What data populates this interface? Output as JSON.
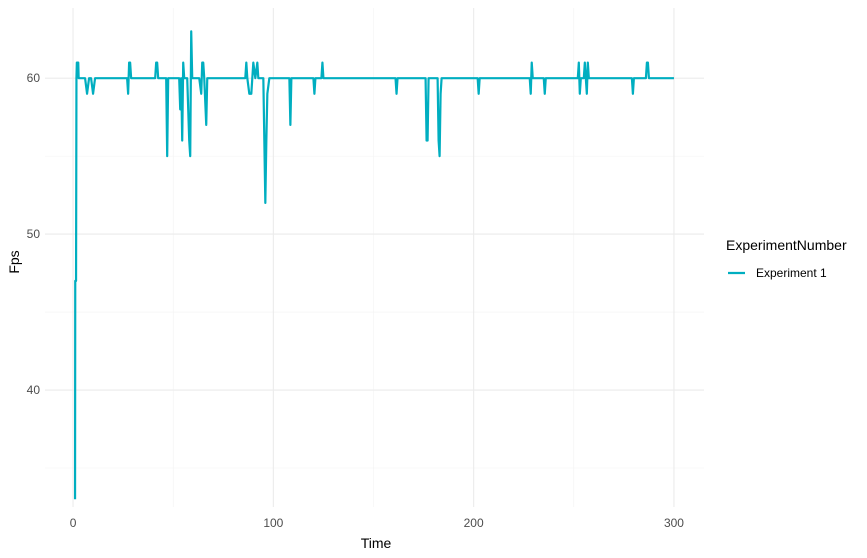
{
  "chart_data": {
    "type": "line",
    "xlabel": "Time",
    "ylabel": "Fps",
    "xlim": [
      -14,
      315
    ],
    "ylim": [
      32.5,
      64.5
    ],
    "x_ticks": [
      0,
      100,
      200,
      300
    ],
    "x_tick_labels": [
      "0",
      "100",
      "200",
      "300"
    ],
    "x_minor_ticks": [
      50,
      150,
      250
    ],
    "y_ticks": [
      40,
      50,
      60
    ],
    "y_tick_labels": [
      "40",
      "50",
      "60"
    ],
    "y_minor_ticks": [
      35,
      45,
      55
    ],
    "grid": true,
    "legend": {
      "title": "ExperimentNumber",
      "position": "right"
    },
    "series": [
      {
        "name": "Experiment 1",
        "color": "#00aec0",
        "points": [
          [
            1,
            33
          ],
          [
            1.1,
            47
          ],
          [
            1.5,
            47
          ],
          [
            1.7,
            60
          ],
          [
            1.9,
            61
          ],
          [
            2.6,
            61
          ],
          [
            2.8,
            60
          ],
          [
            6,
            60
          ],
          [
            7,
            59
          ],
          [
            8,
            60
          ],
          [
            9,
            60
          ],
          [
            10,
            59
          ],
          [
            11,
            60
          ],
          [
            27,
            60
          ],
          [
            27.5,
            59
          ],
          [
            28,
            61
          ],
          [
            28.5,
            61
          ],
          [
            29,
            60
          ],
          [
            41,
            60
          ],
          [
            41.5,
            61
          ],
          [
            42,
            61
          ],
          [
            42.5,
            60
          ],
          [
            46.5,
            60
          ],
          [
            47,
            55
          ],
          [
            47.5,
            60
          ],
          [
            50,
            60
          ],
          [
            53,
            60
          ],
          [
            53.5,
            58
          ],
          [
            54,
            60
          ],
          [
            54.5,
            56
          ],
          [
            55,
            61
          ],
          [
            55.5,
            60
          ],
          [
            57,
            60
          ],
          [
            58,
            56
          ],
          [
            58.5,
            55
          ],
          [
            59,
            63
          ],
          [
            59.5,
            60
          ],
          [
            62,
            60
          ],
          [
            63,
            60
          ],
          [
            64,
            59
          ],
          [
            64.5,
            61
          ],
          [
            65,
            61
          ],
          [
            65.5,
            60
          ],
          [
            66.5,
            57
          ],
          [
            67,
            60
          ],
          [
            86,
            60
          ],
          [
            86.5,
            61
          ],
          [
            87,
            60
          ],
          [
            88,
            59
          ],
          [
            89,
            59
          ],
          [
            90,
            61
          ],
          [
            91,
            60
          ],
          [
            92,
            61
          ],
          [
            92.5,
            60
          ],
          [
            95,
            60
          ],
          [
            95.5,
            56
          ],
          [
            96,
            52
          ],
          [
            96.5,
            56
          ],
          [
            97,
            59
          ],
          [
            98,
            60
          ],
          [
            108,
            60
          ],
          [
            108.5,
            57
          ],
          [
            109,
            60
          ],
          [
            120,
            60
          ],
          [
            120.5,
            59
          ],
          [
            121,
            60
          ],
          [
            124,
            60
          ],
          [
            124.5,
            61
          ],
          [
            125,
            60
          ],
          [
            161,
            60
          ],
          [
            161.5,
            59
          ],
          [
            162,
            60
          ],
          [
            176,
            60
          ],
          [
            176.5,
            56
          ],
          [
            177,
            56
          ],
          [
            177.5,
            60
          ],
          [
            179,
            60
          ],
          [
            182,
            60
          ],
          [
            182.5,
            56
          ],
          [
            183,
            55
          ],
          [
            183.5,
            59
          ],
          [
            184,
            60
          ],
          [
            202,
            60
          ],
          [
            202.5,
            59
          ],
          [
            203,
            60
          ],
          [
            228,
            60
          ],
          [
            228.5,
            59
          ],
          [
            229,
            61
          ],
          [
            229.5,
            60
          ],
          [
            235,
            60
          ],
          [
            235.5,
            59
          ],
          [
            236,
            60
          ],
          [
            252,
            60
          ],
          [
            252.5,
            61
          ],
          [
            253,
            59
          ],
          [
            253.5,
            60
          ],
          [
            255,
            60
          ],
          [
            255.5,
            61
          ],
          [
            256,
            60
          ],
          [
            256.5,
            59
          ],
          [
            257,
            61
          ],
          [
            257.5,
            60
          ],
          [
            279,
            60
          ],
          [
            279.5,
            59
          ],
          [
            280,
            60
          ],
          [
            286,
            60
          ],
          [
            286.5,
            61
          ],
          [
            287,
            61
          ],
          [
            287.5,
            60
          ],
          [
            300,
            60
          ]
        ]
      }
    ]
  }
}
